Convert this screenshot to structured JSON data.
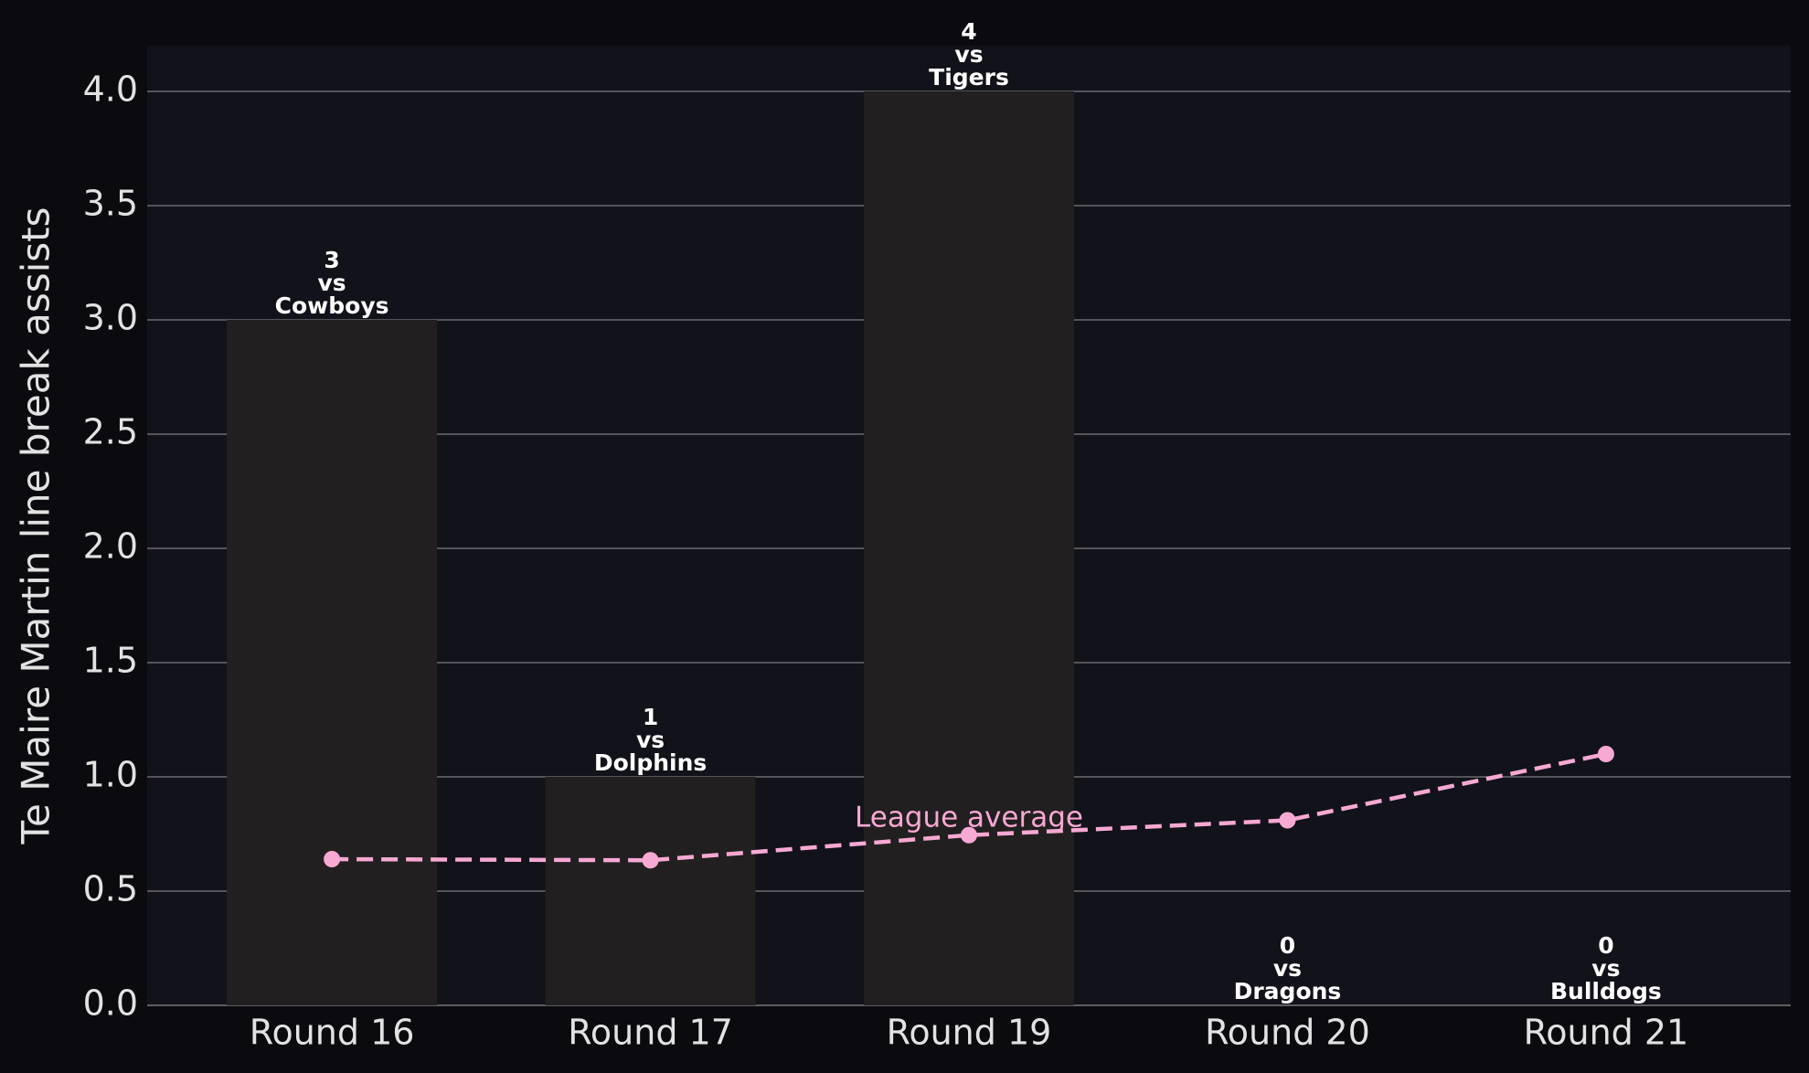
{
  "chart_data": {
    "type": "bar",
    "y_label": "Te Maire Martin line break assists",
    "categories": [
      "Round 16",
      "Round 17",
      "Round 19",
      "Round 20",
      "Round 21"
    ],
    "values": [
      3,
      1,
      4,
      0,
      0
    ],
    "color": "#221f20",
    "label_connector": "vs",
    "opponents": [
      "Cowboys",
      "Dolphins",
      "Tigers",
      "Dragons",
      "Bulldogs"
    ],
    "line_series": {
      "name": "League average",
      "color": "#f7a8d3",
      "values": [
        0.64,
        0.635,
        0.745,
        0.81,
        1.1
      ]
    },
    "ylim": [
      0,
      4.2
    ],
    "yticks": [
      {
        "value": 0,
        "label": "0.0"
      },
      0.5,
      {
        "value": 1,
        "label": "1.0"
      },
      1.5,
      {
        "value": 2,
        "label": "2.0"
      },
      2.5,
      {
        "value": 3,
        "label": "3.0"
      },
      3.5,
      {
        "value": 4,
        "label": "4.0"
      }
    ],
    "grid": true
  }
}
